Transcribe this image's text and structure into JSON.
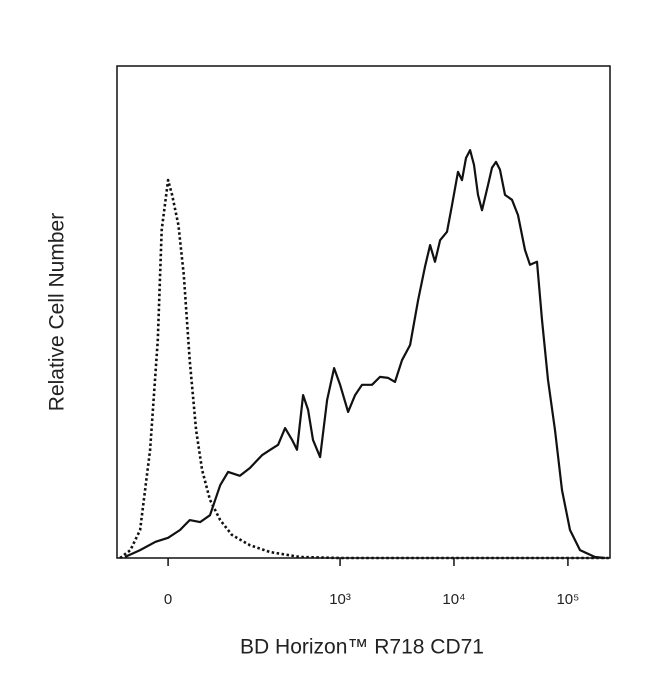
{
  "chart_data": {
    "type": "line",
    "x_label": "BD Horizon™ R718 CD71",
    "y_label": "Relative Cell Number",
    "xscale": "asinh",
    "xscale_width": 62,
    "xlim": [
      -76,
      234000
    ],
    "ylim": [
      0,
      100
    ],
    "xticks": [
      0,
      {
        "value": 1000,
        "label": "10³"
      },
      {
        "value": 10000,
        "label": "10⁴"
      },
      {
        "value": 100000,
        "label": "10⁵"
      }
    ],
    "series": [
      {
        "color": "#111111",
        "dash": true,
        "x": [
          -70,
          -52,
          -37,
          -23,
          -13,
          -8,
          0,
          5,
          13,
          20,
          28,
          37,
          46,
          59,
          78,
          104,
          156,
          240,
          444,
          1000,
          234000
        ],
        "values": [
          0,
          1.6,
          5.7,
          22.0,
          44.3,
          66.7,
          76.8,
          73.8,
          67.7,
          57.5,
          40.2,
          26.0,
          17.9,
          11.8,
          7.7,
          4.7,
          2.6,
          1.2,
          0.2,
          0,
          0
        ]
      },
      {
        "color": "#111111",
        "dash": false,
        "x": [
          -61,
          -37,
          -16,
          0,
          15,
          28,
          43,
          59,
          78,
          95,
          125,
          156,
          202,
          240,
          283,
          327,
          377,
          417,
          472,
          523,
          578,
          667,
          769,
          886,
          1000,
          1176,
          1355,
          1560,
          1909,
          2245,
          2640,
          3040,
          3500,
          4117,
          4840,
          5575,
          6170,
          6822,
          7550,
          8690,
          9610,
          10850,
          11770,
          12760,
          13840,
          15000,
          16260,
          17620,
          19900,
          21560,
          23370,
          25330,
          28030,
          32270,
          36470,
          42000,
          46460,
          53520,
          59190,
          66800,
          76950,
          88700,
          104300,
          127600,
          172900,
          211500
        ],
        "values": [
          0.2,
          1.6,
          3.3,
          4.1,
          5.7,
          7.7,
          7.3,
          8.7,
          14.8,
          17.5,
          16.7,
          18.3,
          20.9,
          22.0,
          23.0,
          26.4,
          24.0,
          22.0,
          33.1,
          30.1,
          24.0,
          20.5,
          32.1,
          38.6,
          35.2,
          29.7,
          33.1,
          35.2,
          35.2,
          36.8,
          36.6,
          35.8,
          40.2,
          43.3,
          52.4,
          59.3,
          63.6,
          60.2,
          64.6,
          66.3,
          71.7,
          78.5,
          76.8,
          81.3,
          82.9,
          79.9,
          73.8,
          70.7,
          75.8,
          79.3,
          80.5,
          78.9,
          73.8,
          72.8,
          69.7,
          62.6,
          59.6,
          60.2,
          48.4,
          36.2,
          26.0,
          13.8,
          5.7,
          1.6,
          0.2,
          0
        ]
      }
    ]
  }
}
